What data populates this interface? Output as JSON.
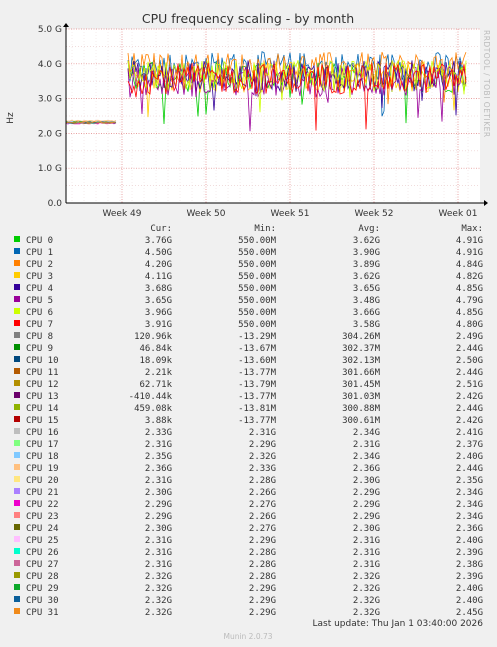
{
  "chart_data": {
    "type": "line",
    "title": "CPU frequency scaling - by month",
    "ylabel": "Hz",
    "y_ticks": [
      "0.0",
      "1.0 G",
      "2.0 G",
      "3.0 G",
      "4.0 G",
      "5.0 G"
    ],
    "ylim": [
      0,
      5000000000
    ],
    "x_ticks": [
      "Week 49",
      "Week 50",
      "Week 51",
      "Week 52",
      "Week 01"
    ],
    "grid": true,
    "side_label": "RRDTOOL / TOBI OETIKER",
    "legend_headers": {
      "cur": "Cur:",
      "min": "Min:",
      "avg": "Avg:",
      "max": "Max:"
    },
    "series": [
      {
        "name": "CPU 0",
        "color": "#00cc00",
        "cur": "3.76G",
        "min": "550.00M",
        "avg": "3.62G",
        "max": "4.91G"
      },
      {
        "name": "CPU 1",
        "color": "#0066b3",
        "cur": "4.50G",
        "min": "550.00M",
        "avg": "3.90G",
        "max": "4.91G"
      },
      {
        "name": "CPU 2",
        "color": "#ff8000",
        "cur": "4.20G",
        "min": "550.00M",
        "avg": "3.89G",
        "max": "4.84G"
      },
      {
        "name": "CPU 3",
        "color": "#ffcc00",
        "cur": "4.11G",
        "min": "550.00M",
        "avg": "3.62G",
        "max": "4.82G"
      },
      {
        "name": "CPU 4",
        "color": "#330099",
        "cur": "3.68G",
        "min": "550.00M",
        "avg": "3.65G",
        "max": "4.85G"
      },
      {
        "name": "CPU 5",
        "color": "#990099",
        "cur": "3.65G",
        "min": "550.00M",
        "avg": "3.48G",
        "max": "4.79G"
      },
      {
        "name": "CPU 6",
        "color": "#ccff00",
        "cur": "3.96G",
        "min": "550.00M",
        "avg": "3.66G",
        "max": "4.85G"
      },
      {
        "name": "CPU 7",
        "color": "#ff0000",
        "cur": "3.91G",
        "min": "550.00M",
        "avg": "3.58G",
        "max": "4.80G"
      },
      {
        "name": "CPU 8",
        "color": "#808080",
        "cur": "120.96k",
        "min": "-13.29M",
        "avg": "304.26M",
        "max": "2.49G"
      },
      {
        "name": "CPU 9",
        "color": "#008f00",
        "cur": "46.84k",
        "min": "-13.67M",
        "avg": "302.37M",
        "max": "2.44G"
      },
      {
        "name": "CPU 10",
        "color": "#00487d",
        "cur": "18.09k",
        "min": "-13.60M",
        "avg": "302.13M",
        "max": "2.50G"
      },
      {
        "name": "CPU 11",
        "color": "#b35a00",
        "cur": "2.21k",
        "min": "-13.77M",
        "avg": "301.66M",
        "max": "2.44G"
      },
      {
        "name": "CPU 12",
        "color": "#b38f00",
        "cur": "62.71k",
        "min": "-13.79M",
        "avg": "301.45M",
        "max": "2.51G"
      },
      {
        "name": "CPU 13",
        "color": "#6b006b",
        "cur": "-410.44k",
        "min": "-13.77M",
        "avg": "301.03M",
        "max": "2.42G"
      },
      {
        "name": "CPU 14",
        "color": "#8fb300",
        "cur": "459.08k",
        "min": "-13.81M",
        "avg": "300.88M",
        "max": "2.44G"
      },
      {
        "name": "CPU 15",
        "color": "#b30000",
        "cur": "3.88k",
        "min": "-13.77M",
        "avg": "300.61M",
        "max": "2.42G"
      },
      {
        "name": "CPU 16",
        "color": "#bebebe",
        "cur": "2.33G",
        "min": "2.31G",
        "avg": "2.34G",
        "max": "2.41G"
      },
      {
        "name": "CPU 17",
        "color": "#80ff80",
        "cur": "2.31G",
        "min": "2.29G",
        "avg": "2.31G",
        "max": "2.37G"
      },
      {
        "name": "CPU 18",
        "color": "#80c9ff",
        "cur": "2.35G",
        "min": "2.32G",
        "avg": "2.34G",
        "max": "2.40G"
      },
      {
        "name": "CPU 19",
        "color": "#ffc080",
        "cur": "2.36G",
        "min": "2.33G",
        "avg": "2.36G",
        "max": "2.44G"
      },
      {
        "name": "CPU 20",
        "color": "#ffe680",
        "cur": "2.31G",
        "min": "2.28G",
        "avg": "2.30G",
        "max": "2.35G"
      },
      {
        "name": "CPU 21",
        "color": "#aa80ff",
        "cur": "2.30G",
        "min": "2.26G",
        "avg": "2.29G",
        "max": "2.34G"
      },
      {
        "name": "CPU 22",
        "color": "#ee00cc",
        "cur": "2.29G",
        "min": "2.27G",
        "avg": "2.29G",
        "max": "2.34G"
      },
      {
        "name": "CPU 23",
        "color": "#ff8080",
        "cur": "2.29G",
        "min": "2.26G",
        "avg": "2.29G",
        "max": "2.34G"
      },
      {
        "name": "CPU 24",
        "color": "#666600",
        "cur": "2.30G",
        "min": "2.27G",
        "avg": "2.30G",
        "max": "2.36G"
      },
      {
        "name": "CPU 25",
        "color": "#ffbfff",
        "cur": "2.31G",
        "min": "2.29G",
        "avg": "2.31G",
        "max": "2.40G"
      },
      {
        "name": "CPU 26",
        "color": "#00ffcc",
        "cur": "2.31G",
        "min": "2.28G",
        "avg": "2.31G",
        "max": "2.39G"
      },
      {
        "name": "CPU 27",
        "color": "#cc6699",
        "cur": "2.31G",
        "min": "2.28G",
        "avg": "2.31G",
        "max": "2.38G"
      },
      {
        "name": "CPU 28",
        "color": "#999900",
        "cur": "2.32G",
        "min": "2.28G",
        "avg": "2.32G",
        "max": "2.39G"
      },
      {
        "name": "CPU 29",
        "color": "#0ca82a",
        "cur": "2.32G",
        "min": "2.29G",
        "avg": "2.32G",
        "max": "2.40G"
      },
      {
        "name": "CPU 30",
        "color": "#0b5f9a",
        "cur": "2.32G",
        "min": "2.29G",
        "avg": "2.32G",
        "max": "2.40G"
      },
      {
        "name": "CPU 31",
        "color": "#f08a1a",
        "cur": "2.32G",
        "min": "2.29G",
        "avg": "2.32G",
        "max": "2.45G"
      }
    ],
    "last_update": "Last update: Thu Jan  1 03:40:00 2026",
    "footer": "Munin 2.0.73"
  }
}
